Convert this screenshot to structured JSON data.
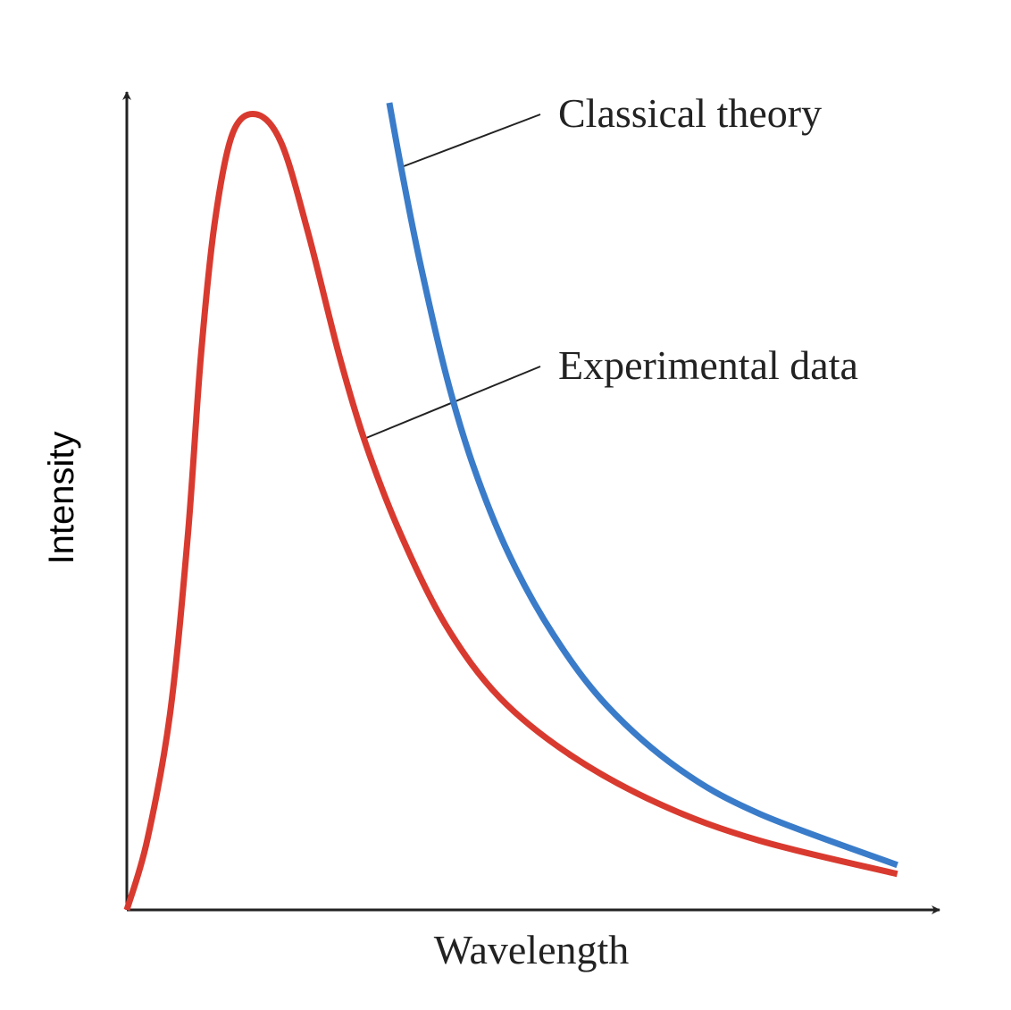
{
  "chart_data": {
    "type": "line",
    "x_label": "Wavelength",
    "y_label": "Intensity",
    "xlim": [
      0,
      100
    ],
    "ylim": [
      0,
      100
    ],
    "series": [
      {
        "name": "Experimental data",
        "color": "#d93a2f",
        "x": [
          0,
          2.5,
          5.3,
          7.5,
          9.1,
          10.8,
          13,
          15.9,
          19,
          22.3,
          26.2,
          29.5,
          33.8,
          39.3,
          45.9,
          54.7,
          65.7,
          77.8,
          94.8
        ],
        "values": [
          0,
          8.5,
          23.9,
          45.8,
          67.7,
          84.1,
          95.1,
          97.5,
          94,
          83,
          67.7,
          56.8,
          45.8,
          34.8,
          26,
          18.9,
          12.9,
          8.5,
          4.4
        ]
      },
      {
        "name": "Classical theory",
        "color": "#3a7cc9",
        "x": [
          32.3,
          33.8,
          36,
          39.3,
          42.6,
          47,
          52.5,
          59.1,
          67.9,
          77.8,
          94.8
        ],
        "values": [
          98.9,
          90.7,
          79.7,
          65.5,
          54.5,
          43.6,
          33.7,
          25,
          17.3,
          11.8,
          5.5
        ]
      }
    ]
  }
}
